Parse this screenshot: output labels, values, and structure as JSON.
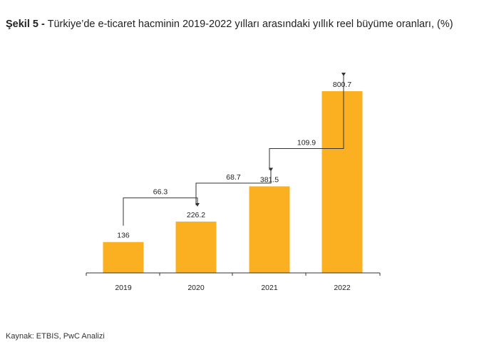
{
  "figure": {
    "label": "Şekil 5 -",
    "title": "Türkiye’de e-ticaret hacminin 2019-2022 yılları arasındaki yıllık reel büyüme oranları, (%)",
    "source": "Kaynak: ETBIS, PwC Analizi"
  },
  "colors": {
    "bar": "#FBB021",
    "axis": "#333333",
    "text": "#222222"
  },
  "chart_data": {
    "type": "bar",
    "title": "Türkiye’de e-ticaret hacminin 2019-2022 yılları arasındaki yıllık reel büyüme oranları, (%)",
    "categories": [
      "2019",
      "2020",
      "2021",
      "2022"
    ],
    "values": [
      136,
      226.2,
      381.5,
      800.7
    ],
    "value_labels": [
      "136",
      "226.2",
      "381.5",
      "800.7"
    ],
    "ylim": [
      0,
      900
    ],
    "grid": false,
    "growth_annotations": [
      {
        "from": "2019",
        "to": "2020",
        "label": "66.3"
      },
      {
        "from": "2020",
        "to": "2021",
        "label": "68.7"
      },
      {
        "from": "2021",
        "to": "2022",
        "label": "109.9"
      }
    ]
  }
}
